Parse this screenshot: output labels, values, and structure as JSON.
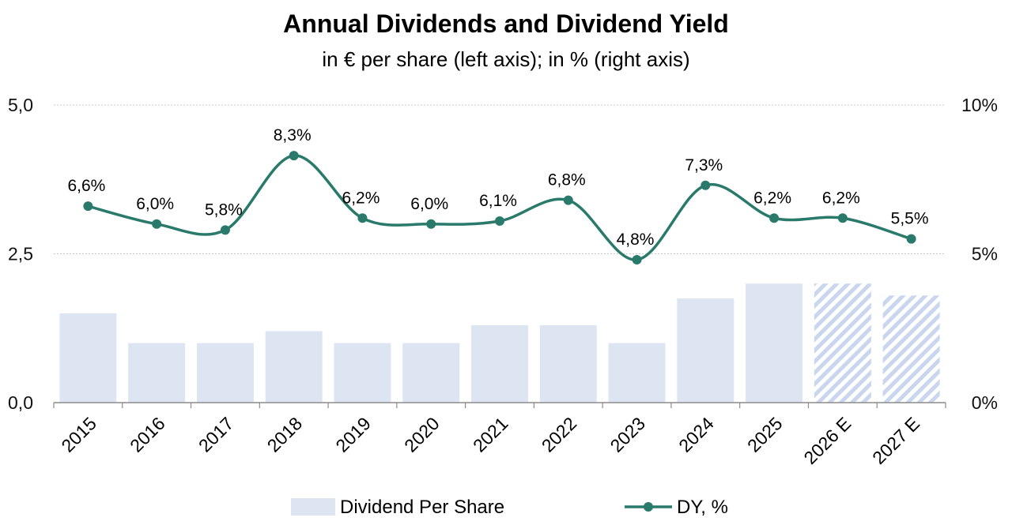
{
  "chart_data": {
    "type": "bar+line",
    "title": "Annual Dividends and Dividend Yield",
    "subtitle": "in € per share (left axis); in % (right axis)",
    "categories": [
      "2015",
      "2016",
      "2017",
      "2018",
      "2019",
      "2020",
      "2021",
      "2022",
      "2023",
      "2024",
      "2025",
      "2026 E",
      "2027 E"
    ],
    "estimate_flags": [
      false,
      false,
      false,
      false,
      false,
      false,
      false,
      false,
      false,
      false,
      false,
      true,
      true
    ],
    "series": [
      {
        "name": "Dividend Per Share",
        "type": "bar",
        "axis": "left",
        "values": [
          1.5,
          1.0,
          1.0,
          1.2,
          1.0,
          1.0,
          1.3,
          1.3,
          1.0,
          1.75,
          2.0,
          2.0,
          1.8
        ]
      },
      {
        "name": "DY, %",
        "type": "line",
        "axis": "right",
        "values": [
          6.6,
          6.0,
          5.8,
          8.3,
          6.2,
          6.0,
          6.1,
          6.8,
          4.8,
          7.3,
          6.2,
          6.2,
          5.5
        ],
        "labels": [
          "6,6%",
          "6,0%",
          "5,8%",
          "8,3%",
          "6,2%",
          "6,0%",
          "6,1%",
          "6,8%",
          "4,8%",
          "7,3%",
          "6,2%",
          "6,2%",
          "5,5%"
        ]
      }
    ],
    "left_axis": {
      "ylim": [
        0,
        5
      ],
      "ticks": [
        0,
        2.5,
        5
      ],
      "tick_labels": [
        "0,0",
        "2,5",
        "5,0"
      ]
    },
    "right_axis": {
      "ylim": [
        0,
        10
      ],
      "ticks": [
        0,
        5,
        10
      ],
      "tick_labels": [
        "0%",
        "5%",
        "10%"
      ]
    },
    "grid": true,
    "legend_position": "bottom"
  },
  "colors": {
    "bar": "#dde5f3",
    "line": "#2a7a6c",
    "hatch": "#c9d6ee",
    "grid": "#c8c8c8",
    "axis": "#8c8c8c"
  }
}
